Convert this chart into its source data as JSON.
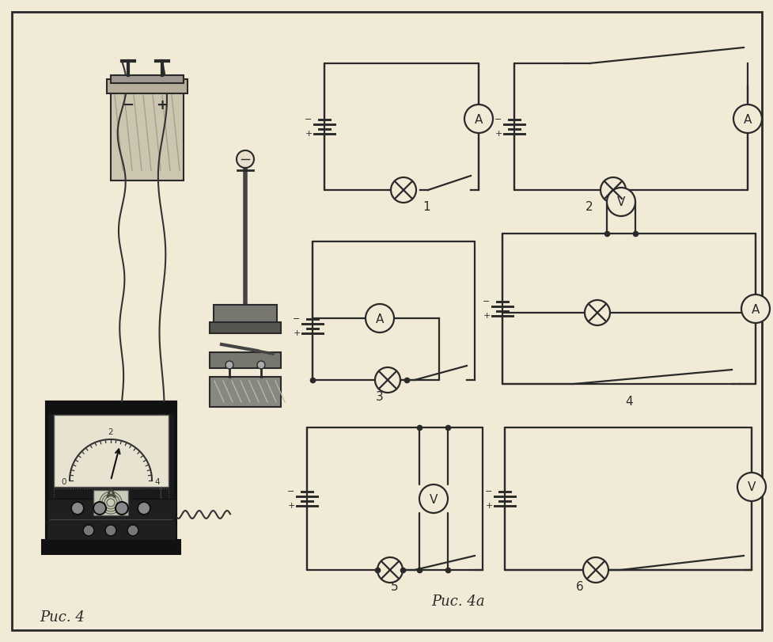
{
  "bg_color": "#f0ead6",
  "line_color": "#2a2a2a",
  "text_color": "#2a2a2a",
  "fig_width": 9.78,
  "fig_height": 8.11,
  "label_fig4": "Рис. 4",
  "label_fig4a": "Рис. 4а",
  "circuit_labels": [
    "1",
    "2",
    "3",
    "4",
    "5",
    "6"
  ],
  "ammeter_r": 18,
  "voltmeter_r": 18,
  "bulb_r": 16
}
